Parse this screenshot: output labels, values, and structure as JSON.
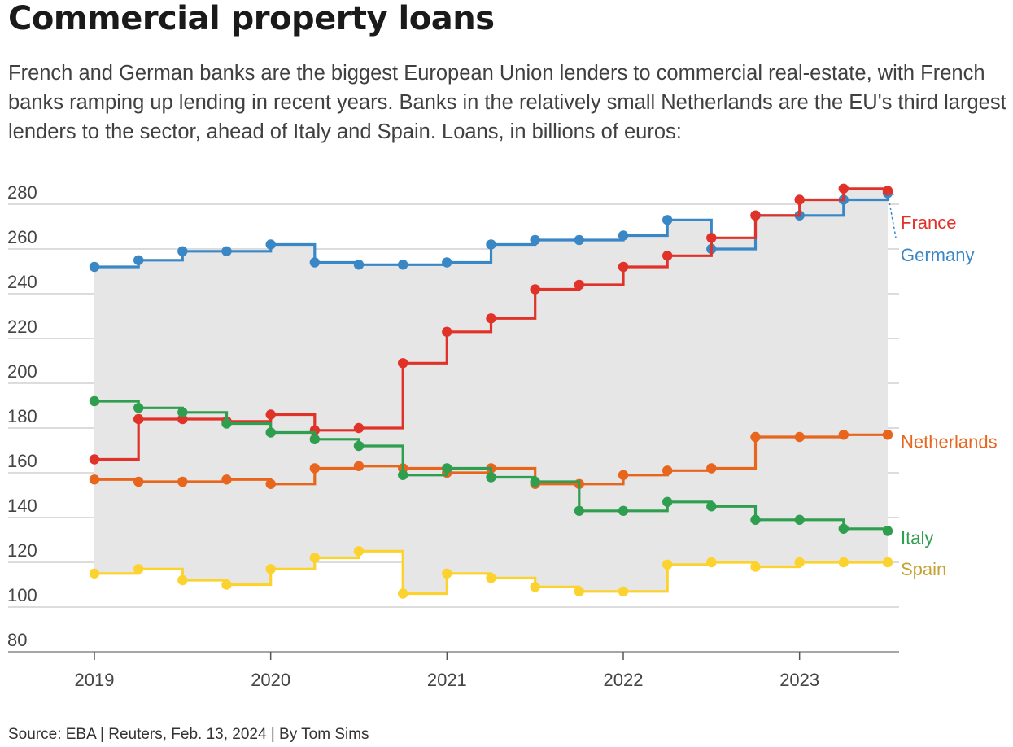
{
  "header": {
    "title": "Commercial property loans",
    "subtitle": "French and German banks are the biggest European Union lenders to commercial real-estate, with French banks ramping up lending in recent years. Banks in the relatively small Netherlands are the EU's third largest lenders to the sector, ahead of Italy and Spain. Loans, in billions of euros:"
  },
  "footer": {
    "source": "Source: EBA | Reuters, Feb. 13, 2024 | By Tom Sims"
  },
  "chart_data": {
    "type": "line",
    "step": true,
    "title": "Commercial property loans",
    "xlabel": "",
    "ylabel": "Loans, in billions of euros",
    "ylim": [
      80,
      280
    ],
    "yticks": [
      "280",
      "260",
      "240",
      "220",
      "200",
      "180",
      "160",
      "140",
      "120",
      "100",
      "80"
    ],
    "xticks": [
      "2019",
      "2020",
      "2021",
      "2022",
      "2023"
    ],
    "x": [
      2019.0,
      2019.25,
      2019.5,
      2019.75,
      2020.0,
      2020.25,
      2020.5,
      2020.75,
      2021.0,
      2021.25,
      2021.5,
      2021.75,
      2022.0,
      2022.25,
      2022.5,
      2022.75,
      2023.0,
      2023.25,
      2023.5
    ],
    "shaded_range": "between lowest and highest series",
    "series": [
      {
        "name": "Germany",
        "color": "#3a87c6",
        "values": [
          252,
          255,
          259,
          259,
          262,
          254,
          253,
          253,
          254,
          262,
          264,
          264,
          266,
          273,
          260,
          275,
          275,
          282,
          285
        ]
      },
      {
        "name": "France",
        "color": "#e03228",
        "values": [
          166,
          184,
          184,
          183,
          186,
          179,
          180,
          209,
          223,
          229,
          242,
          244,
          252,
          257,
          265,
          275,
          282,
          287,
          286
        ]
      },
      {
        "name": "Netherlands",
        "color": "#e8651e",
        "values": [
          157,
          156,
          156,
          157,
          155,
          162,
          163,
          162,
          160,
          162,
          155,
          155,
          159,
          161,
          162,
          176,
          176,
          177,
          177
        ]
      },
      {
        "name": "Italy",
        "color": "#2f9e4f",
        "values": [
          192,
          189,
          187,
          182,
          178,
          175,
          172,
          159,
          162,
          158,
          156,
          143,
          143,
          147,
          145,
          139,
          139,
          135,
          134
        ]
      },
      {
        "name": "Spain",
        "color": "#fcd22e",
        "values": [
          115,
          117,
          112,
          110,
          117,
          122,
          125,
          106,
          115,
          113,
          109,
          107,
          107,
          119,
          120,
          118,
          120,
          120,
          120
        ]
      }
    ],
    "labels": [
      {
        "series": "France",
        "text": "France",
        "color": "#e03228"
      },
      {
        "series": "Germany",
        "text": "Germany",
        "color": "#3a87c6"
      },
      {
        "series": "Netherlands",
        "text": "Netherlands",
        "color": "#e8651e"
      },
      {
        "series": "Italy",
        "text": "Italy",
        "color": "#2f9e4f"
      },
      {
        "series": "Spain",
        "text": "Spain",
        "color": "#c4a335"
      }
    ]
  }
}
